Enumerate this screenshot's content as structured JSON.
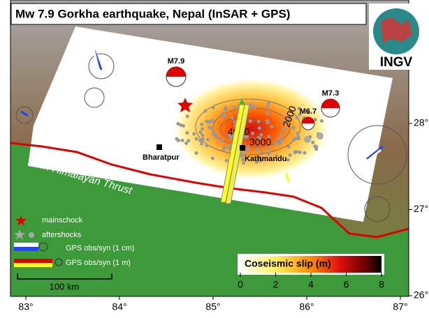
{
  "title": "Mw 7.9 Gorkha earthquake, Nepal (InSAR + GPS)",
  "logo": "INGV",
  "events": [
    "M7.9",
    "M7.3",
    "M6.7"
  ],
  "places": [
    "Bharatpur",
    "Kathmandu"
  ],
  "fault": "Main Himalayan Thrust",
  "contours": [
    4000,
    3000,
    2000
  ],
  "legend": [
    "mainschock",
    "aftershocks",
    "GPS obs/syn (1 cm)",
    "GPS obs/syn (1 m)"
  ],
  "scale_bar": "100 km",
  "colorbar": {
    "title": "Coseismic slip (m)",
    "lim": [
      0,
      8
    ],
    "ticks": [
      0,
      2,
      4,
      6,
      8
    ]
  },
  "lon_ticks": [
    {
      "value": 83,
      "label": "83°"
    },
    {
      "value": 84,
      "label": "84°"
    },
    {
      "value": 85,
      "label": "85°"
    },
    {
      "value": 86,
      "label": "86°"
    },
    {
      "value": 87,
      "label": "87°"
    }
  ],
  "lat_ticks": [
    {
      "value": 26,
      "label": "26°"
    },
    {
      "value": 27,
      "label": "27°"
    },
    {
      "value": 28,
      "label": "28°"
    }
  ]
}
